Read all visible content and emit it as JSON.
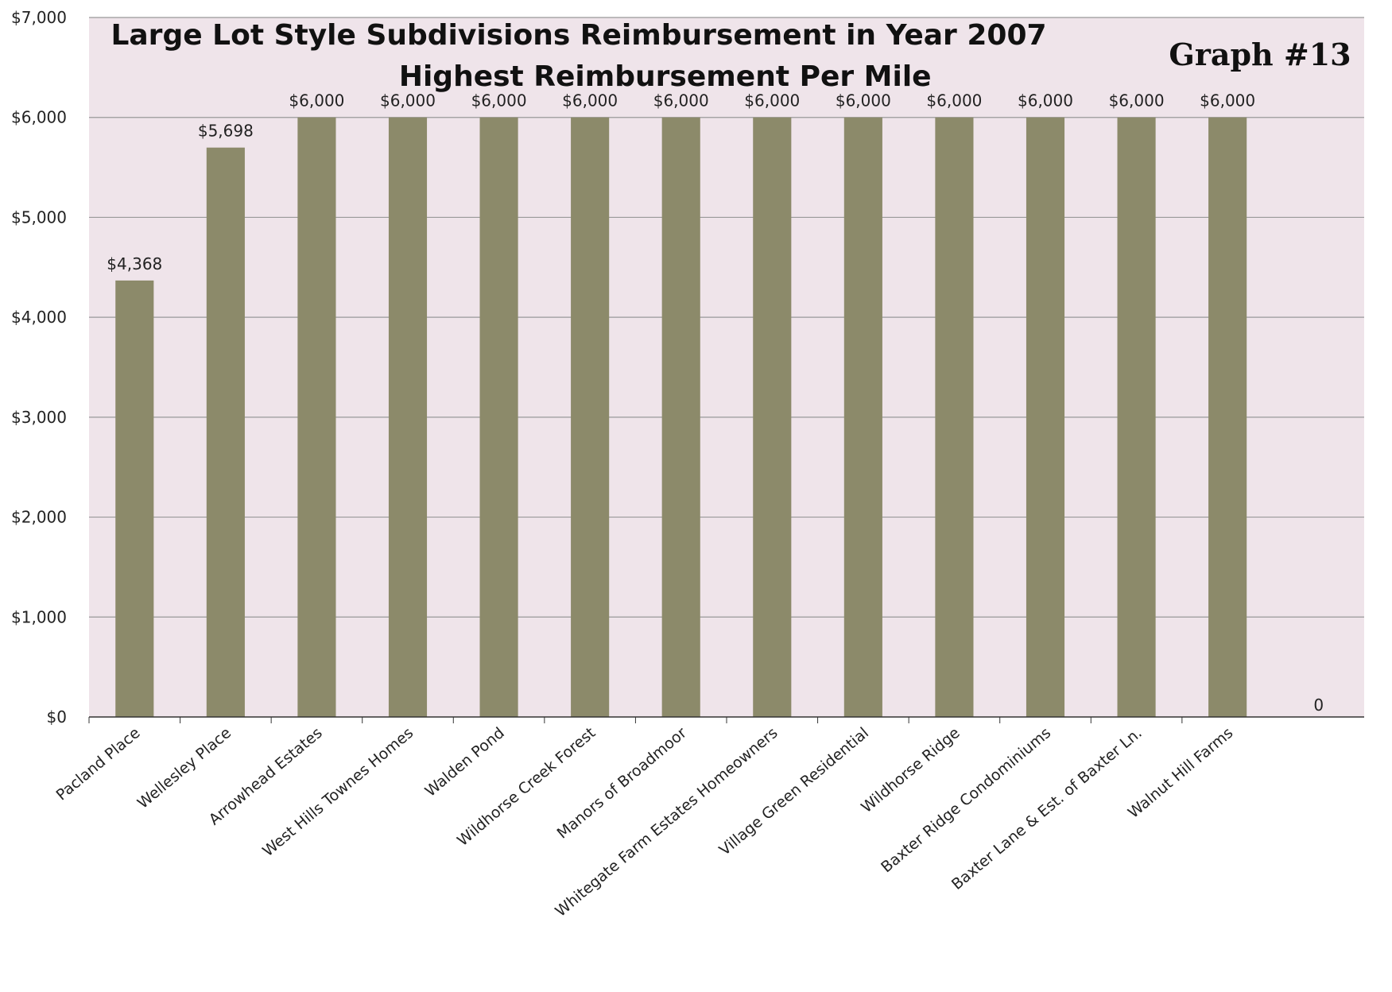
{
  "chart_data": {
    "type": "bar",
    "title": "Large Lot Style Subdivisions Reimbursement in Year 2007",
    "subtitle": "Highest Reimbursement Per Mile",
    "annotation": "Graph #13",
    "categories": [
      "Pacland Place",
      "Wellesley Place",
      "Arrowhead Estates",
      "West Hills Townes Homes",
      "Walden Pond",
      "Wildhorse Creek Forest",
      "Manors of Broadmoor",
      "Whitegate Farm Estates Homeowners",
      "Village Green Residential",
      "Wildhorse Ridge",
      "Baxter Ridge Condominiums",
      "Baxter Lane & Est. of Baxter Ln.",
      "Walnut Hill Farms"
    ],
    "values": [
      4368,
      5698,
      6000,
      6000,
      6000,
      6000,
      6000,
      6000,
      6000,
      6000,
      6000,
      6000,
      6000
    ],
    "data_labels": [
      "$4,368",
      "$5,698",
      "$6,000",
      "$6,000",
      "$6,000",
      "$6,000",
      "$6,000",
      "$6,000",
      "$6,000",
      "$6,000",
      "$6,000",
      "$6,000",
      "$6,000"
    ],
    "extra_label": "0",
    "ylim": [
      0,
      7000
    ],
    "yticks": [
      "$0",
      "$1,000",
      "$2,000",
      "$3,000",
      "$4,000",
      "$5,000",
      "$6,000",
      "$7,000"
    ],
    "xlabel": "",
    "ylabel": "",
    "grid": true,
    "colors": {
      "bar": "#8c8a6a",
      "plot_bg": "#efe4ea",
      "gridline": "#999999",
      "axis": "#333333"
    }
  }
}
